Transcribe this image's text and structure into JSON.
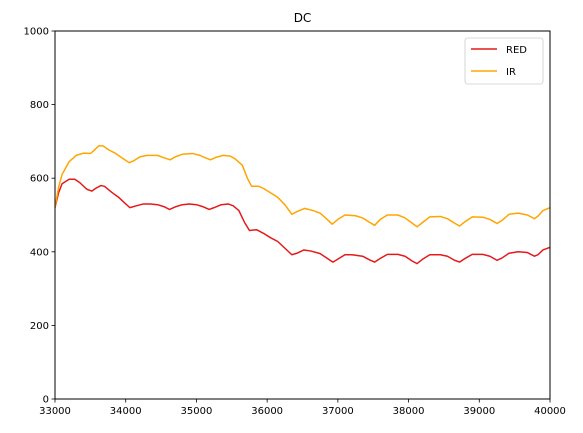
{
  "chart_data": {
    "type": "line",
    "title": "DC",
    "xlabel": "",
    "ylabel": "",
    "xlim": [
      33000,
      40000
    ],
    "ylim": [
      0,
      1000
    ],
    "xticks": [
      33000,
      34000,
      35000,
      36000,
      37000,
      38000,
      39000,
      40000
    ],
    "yticks": [
      0,
      200,
      400,
      600,
      800,
      1000
    ],
    "grid": false,
    "legend": "top-right",
    "series": [
      {
        "name": "RED",
        "color": "#e41a1c",
        "points": [
          [
            33000,
            520
          ],
          [
            33050,
            560
          ],
          [
            33100,
            585
          ],
          [
            33200,
            597
          ],
          [
            33280,
            597
          ],
          [
            33350,
            588
          ],
          [
            33450,
            570
          ],
          [
            33520,
            565
          ],
          [
            33580,
            573
          ],
          [
            33650,
            580
          ],
          [
            33700,
            578
          ],
          [
            33800,
            562
          ],
          [
            33900,
            548
          ],
          [
            34000,
            530
          ],
          [
            34060,
            520
          ],
          [
            34150,
            525
          ],
          [
            34250,
            530
          ],
          [
            34350,
            530
          ],
          [
            34450,
            528
          ],
          [
            34550,
            522
          ],
          [
            34620,
            515
          ],
          [
            34700,
            522
          ],
          [
            34800,
            528
          ],
          [
            34900,
            530
          ],
          [
            35000,
            528
          ],
          [
            35100,
            522
          ],
          [
            35180,
            515
          ],
          [
            35250,
            520
          ],
          [
            35350,
            528
          ],
          [
            35450,
            530
          ],
          [
            35520,
            525
          ],
          [
            35600,
            512
          ],
          [
            35680,
            480
          ],
          [
            35750,
            458
          ],
          [
            35850,
            460
          ],
          [
            35950,
            450
          ],
          [
            36050,
            438
          ],
          [
            36150,
            428
          ],
          [
            36250,
            410
          ],
          [
            36350,
            392
          ],
          [
            36420,
            396
          ],
          [
            36520,
            405
          ],
          [
            36620,
            402
          ],
          [
            36750,
            395
          ],
          [
            36850,
            382
          ],
          [
            36930,
            372
          ],
          [
            37000,
            380
          ],
          [
            37100,
            392
          ],
          [
            37200,
            392
          ],
          [
            37350,
            388
          ],
          [
            37450,
            378
          ],
          [
            37520,
            372
          ],
          [
            37600,
            382
          ],
          [
            37700,
            393
          ],
          [
            37850,
            393
          ],
          [
            37950,
            388
          ],
          [
            38050,
            375
          ],
          [
            38120,
            368
          ],
          [
            38200,
            380
          ],
          [
            38300,
            392
          ],
          [
            38450,
            392
          ],
          [
            38550,
            388
          ],
          [
            38650,
            377
          ],
          [
            38720,
            372
          ],
          [
            38800,
            382
          ],
          [
            38900,
            393
          ],
          [
            39050,
            393
          ],
          [
            39150,
            388
          ],
          [
            39250,
            377
          ],
          [
            39320,
            383
          ],
          [
            39420,
            396
          ],
          [
            39550,
            400
          ],
          [
            39680,
            398
          ],
          [
            39780,
            388
          ],
          [
            39830,
            392
          ],
          [
            39900,
            405
          ],
          [
            40000,
            412
          ]
        ]
      },
      {
        "name": "IR",
        "color": "#ffa500",
        "points": [
          [
            33000,
            520
          ],
          [
            33050,
            575
          ],
          [
            33100,
            610
          ],
          [
            33200,
            645
          ],
          [
            33300,
            662
          ],
          [
            33400,
            668
          ],
          [
            33500,
            667
          ],
          [
            33550,
            675
          ],
          [
            33620,
            688
          ],
          [
            33680,
            688
          ],
          [
            33750,
            678
          ],
          [
            33850,
            668
          ],
          [
            33950,
            655
          ],
          [
            34050,
            642
          ],
          [
            34120,
            648
          ],
          [
            34200,
            658
          ],
          [
            34300,
            662
          ],
          [
            34450,
            662
          ],
          [
            34550,
            655
          ],
          [
            34630,
            650
          ],
          [
            34700,
            658
          ],
          [
            34800,
            665
          ],
          [
            34950,
            667
          ],
          [
            35050,
            662
          ],
          [
            35130,
            655
          ],
          [
            35200,
            650
          ],
          [
            35280,
            657
          ],
          [
            35380,
            662
          ],
          [
            35480,
            660
          ],
          [
            35550,
            652
          ],
          [
            35650,
            635
          ],
          [
            35720,
            600
          ],
          [
            35780,
            578
          ],
          [
            35880,
            578
          ],
          [
            35950,
            572
          ],
          [
            36050,
            560
          ],
          [
            36150,
            548
          ],
          [
            36250,
            528
          ],
          [
            36350,
            502
          ],
          [
            36430,
            510
          ],
          [
            36530,
            518
          ],
          [
            36650,
            512
          ],
          [
            36750,
            505
          ],
          [
            36850,
            488
          ],
          [
            36920,
            475
          ],
          [
            37000,
            488
          ],
          [
            37100,
            500
          ],
          [
            37250,
            498
          ],
          [
            37350,
            492
          ],
          [
            37450,
            480
          ],
          [
            37520,
            472
          ],
          [
            37600,
            488
          ],
          [
            37700,
            500
          ],
          [
            37850,
            500
          ],
          [
            37950,
            492
          ],
          [
            38050,
            478
          ],
          [
            38120,
            468
          ],
          [
            38200,
            480
          ],
          [
            38300,
            495
          ],
          [
            38450,
            496
          ],
          [
            38550,
            490
          ],
          [
            38650,
            478
          ],
          [
            38720,
            470
          ],
          [
            38800,
            482
          ],
          [
            38900,
            495
          ],
          [
            39050,
            494
          ],
          [
            39150,
            488
          ],
          [
            39250,
            477
          ],
          [
            39320,
            485
          ],
          [
            39420,
            502
          ],
          [
            39550,
            505
          ],
          [
            39680,
            500
          ],
          [
            39780,
            490
          ],
          [
            39830,
            497
          ],
          [
            39900,
            512
          ],
          [
            40000,
            520
          ]
        ]
      }
    ]
  }
}
